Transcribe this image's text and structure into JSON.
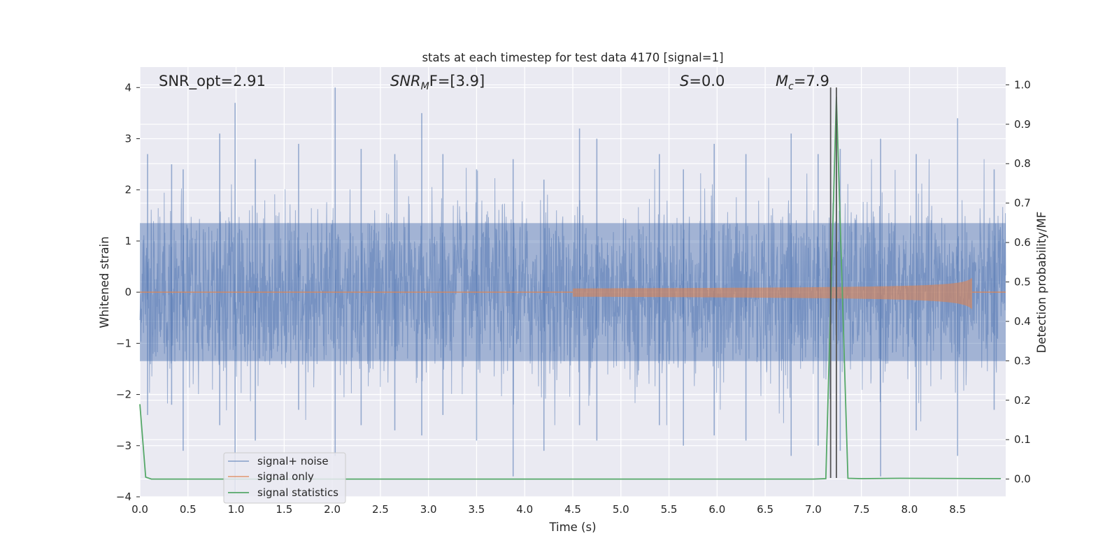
{
  "chart_data": {
    "type": "line",
    "title": "stats at each timestep for test data 4170 [signal=1]",
    "xlabel": "Time (s)",
    "ylabel": "Whitened strain",
    "y2label": "Detection probability/MF",
    "xlim": [
      0,
      9.0
    ],
    "ylim": [
      -4,
      4.4
    ],
    "y2lim": [
      -0.045,
      1.045
    ],
    "xticks": [
      "0.0",
      "0.5",
      "1.0",
      "1.5",
      "2.0",
      "2.5",
      "3.0",
      "3.5",
      "4.0",
      "4.5",
      "5.0",
      "5.5",
      "6.0",
      "6.5",
      "7.0",
      "7.5",
      "8.0",
      "8.5"
    ],
    "yticks": [
      "4",
      "3",
      "2",
      "1",
      "0",
      "−1",
      "−2",
      "−3",
      "−4"
    ],
    "y2ticks": [
      "0.0",
      "0.1",
      "0.2",
      "0.3",
      "0.4",
      "0.5",
      "0.6",
      "0.7",
      "0.8",
      "0.9",
      "1.0"
    ],
    "grid": true,
    "legend_position": "lower-left",
    "annotations": {
      "snr_opt": "SNR_opt=2.91",
      "snr_mf_main": "SNR",
      "snr_mf_sub": "M",
      "snr_mf_rest": "F=[3.9]",
      "s_main": "S",
      "s_rest": "=0.0",
      "mc_main": "M",
      "mc_sub": "c",
      "mc_rest": "=7.9"
    },
    "vertical_lines_x": [
      7.18,
      7.24
    ],
    "series": [
      {
        "name": "signal+ noise",
        "color": "#4c72b0",
        "description_values": "whitened strain noise, roughly ±1.4 bulk with spikes up to ±4",
        "envelope_spikes": [
          [
            0.08,
            2.7,
            -2.4
          ],
          [
            0.33,
            2.5,
            -2.2
          ],
          [
            0.45,
            2.4,
            -3.1
          ],
          [
            0.83,
            3.1,
            -2.6
          ],
          [
            0.99,
            3.7,
            -3.9
          ],
          [
            1.2,
            2.6,
            -2.9
          ],
          [
            1.65,
            2.9,
            -2.3
          ],
          [
            2.03,
            4.0,
            -3.2
          ],
          [
            2.3,
            2.8,
            -2.6
          ],
          [
            2.65,
            2.7,
            -2.7
          ],
          [
            2.93,
            3.5,
            -2.8
          ],
          [
            3.15,
            2.7,
            -2.4
          ],
          [
            3.5,
            2.4,
            -2.9
          ],
          [
            3.88,
            2.6,
            -3.6
          ],
          [
            4.2,
            2.2,
            -3.1
          ],
          [
            4.57,
            3.2,
            -2.6
          ],
          [
            4.75,
            3.0,
            -2.9
          ],
          [
            5.4,
            2.7,
            -2.6
          ],
          [
            5.65,
            2.4,
            -3.0
          ],
          [
            5.97,
            2.9,
            -2.8
          ],
          [
            6.3,
            2.7,
            -2.9
          ],
          [
            6.77,
            3.1,
            -3.2
          ],
          [
            7.05,
            2.7,
            -3.0
          ],
          [
            7.28,
            2.8,
            -3.1
          ],
          [
            7.7,
            3.0,
            -3.6
          ],
          [
            8.07,
            2.7,
            -2.7
          ],
          [
            8.5,
            3.4,
            -3.2
          ],
          [
            8.88,
            2.4,
            -2.3
          ]
        ]
      },
      {
        "name": "signal only",
        "color": "#dd8452",
        "chirp_end": 8.65,
        "chirp_peak_amp": 0.28
      },
      {
        "name": "signal statistics",
        "color": "#55a868",
        "axis": "right",
        "x": [
          0.0,
          0.06,
          0.12,
          1.0,
          7.0,
          7.13,
          7.24,
          7.36,
          7.5,
          7.9,
          8.95
        ],
        "y": [
          0.19,
          0.005,
          0.0,
          0.0,
          0.0,
          0.001,
          0.97,
          0.002,
          0.001,
          0.002,
          0.001
        ]
      }
    ]
  }
}
